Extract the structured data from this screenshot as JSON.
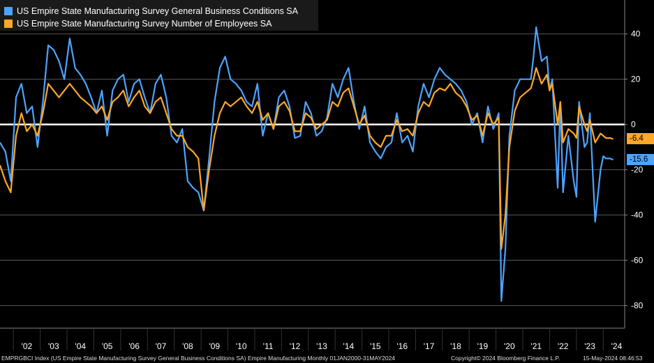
{
  "colors": {
    "background": "#000000",
    "series_blue": "#4da3ff",
    "series_orange": "#ffa726",
    "zero_line": "#ffffff",
    "grid": "#5a5a5a",
    "axis": "#888888"
  },
  "legend": [
    {
      "label": "US Empire State Manufacturing Survey General Business Conditions SA",
      "color": "#4da3ff"
    },
    {
      "label": "US Empire State Manufacturing Survey Number of Employees SA",
      "color": "#ffa726"
    }
  ],
  "last_values": {
    "orange": "-6.4",
    "blue": "-15.6"
  },
  "footer": {
    "left": "EMPRGBCI Index (US Empire State Manufacturing Survey General Business Conditions SA) Empire Manufacturing  Monthly 01JAN2000-31MAY2024",
    "center": "Copyright© 2024 Bloomberg Finance L.P.",
    "right": "15-May-2024 08:46:53"
  },
  "chart_data": {
    "type": "line",
    "xlim": [
      2001.5,
      2024.8
    ],
    "ylim": [
      -90,
      55
    ],
    "y_ticks": [
      40,
      20,
      0,
      -20,
      -40,
      -60,
      -80
    ],
    "y_tick_labels": [
      "40",
      "20",
      "0",
      "-20",
      "-40",
      "-60",
      "-80"
    ],
    "x_tick_labels": [
      "'02",
      "'03",
      "'04",
      "'05",
      "'06",
      "'07",
      "'08",
      "'09",
      "'10",
      "'11",
      "'12",
      "'13",
      "'14",
      "'15",
      "'16",
      "'17",
      "'18",
      "'19",
      "'20",
      "'21",
      "'22",
      "'23",
      "'24"
    ],
    "grid": true,
    "legend_position": "top-left",
    "series": [
      {
        "name": "US Empire State Manufacturing Survey General Business Conditions SA",
        "color": "#4da3ff",
        "x": [
          2001.5,
          2001.7,
          2001.9,
          2002.1,
          2002.3,
          2002.5,
          2002.7,
          2002.9,
          2003.1,
          2003.3,
          2003.5,
          2003.7,
          2003.9,
          2004.1,
          2004.3,
          2004.5,
          2004.7,
          2004.9,
          2005.1,
          2005.3,
          2005.5,
          2005.7,
          2005.9,
          2006.1,
          2006.3,
          2006.5,
          2006.7,
          2006.9,
          2007.1,
          2007.3,
          2007.5,
          2007.7,
          2007.9,
          2008.1,
          2008.3,
          2008.5,
          2008.7,
          2008.9,
          2009.1,
          2009.3,
          2009.5,
          2009.7,
          2009.9,
          2010.1,
          2010.3,
          2010.5,
          2010.7,
          2010.9,
          2011.1,
          2011.3,
          2011.5,
          2011.7,
          2011.9,
          2012.1,
          2012.3,
          2012.5,
          2012.7,
          2012.9,
          2013.1,
          2013.3,
          2013.5,
          2013.7,
          2013.9,
          2014.1,
          2014.3,
          2014.5,
          2014.7,
          2014.9,
          2015.1,
          2015.3,
          2015.5,
          2015.7,
          2015.9,
          2016.1,
          2016.3,
          2016.5,
          2016.7,
          2016.9,
          2017.1,
          2017.3,
          2017.5,
          2017.7,
          2017.9,
          2018.1,
          2018.3,
          2018.5,
          2018.7,
          2018.9,
          2019.1,
          2019.3,
          2019.5,
          2019.7,
          2019.9,
          2020.1,
          2020.2,
          2020.35,
          2020.5,
          2020.7,
          2020.9,
          2021.1,
          2021.3,
          2021.4,
          2021.5,
          2021.7,
          2021.9,
          2022.0,
          2022.1,
          2022.3,
          2022.4,
          2022.5,
          2022.7,
          2022.9,
          2023.0,
          2023.1,
          2023.3,
          2023.4,
          2023.5,
          2023.7,
          2023.9,
          2024.0,
          2024.1,
          2024.25,
          2024.37
        ],
        "y": [
          -8,
          -12,
          -25,
          12,
          18,
          5,
          8,
          -10,
          10,
          35,
          33,
          28,
          20,
          38,
          25,
          22,
          18,
          12,
          5,
          15,
          -5,
          15,
          20,
          22,
          10,
          18,
          20,
          12,
          5,
          18,
          22,
          12,
          -5,
          -8,
          -2,
          -25,
          -28,
          -30,
          -38,
          -15,
          10,
          25,
          30,
          20,
          18,
          15,
          10,
          8,
          18,
          -5,
          5,
          -2,
          12,
          15,
          8,
          -6,
          -5,
          10,
          5,
          -5,
          -3,
          3,
          18,
          12,
          20,
          25,
          10,
          -2,
          8,
          -8,
          -12,
          -15,
          -10,
          -8,
          5,
          -8,
          -5,
          -12,
          8,
          18,
          12,
          20,
          25,
          22,
          20,
          18,
          15,
          10,
          0,
          5,
          -8,
          8,
          -2,
          5,
          -78,
          -55,
          -5,
          15,
          20,
          20,
          20,
          30,
          43,
          28,
          30,
          15,
          20,
          -28,
          10,
          -30,
          -5,
          -25,
          -32,
          10,
          -10,
          -8,
          5,
          -43,
          -20,
          -14,
          -15,
          -15,
          -15.6
        ]
      },
      {
        "name": "US Empire State Manufacturing Survey Number of Employees SA",
        "color": "#ffa726",
        "x": [
          2001.5,
          2001.7,
          2001.9,
          2002.1,
          2002.3,
          2002.5,
          2002.7,
          2002.9,
          2003.1,
          2003.3,
          2003.5,
          2003.7,
          2003.9,
          2004.1,
          2004.3,
          2004.5,
          2004.7,
          2004.9,
          2005.1,
          2005.3,
          2005.5,
          2005.7,
          2005.9,
          2006.1,
          2006.3,
          2006.5,
          2006.7,
          2006.9,
          2007.1,
          2007.3,
          2007.5,
          2007.7,
          2007.9,
          2008.1,
          2008.3,
          2008.5,
          2008.7,
          2008.9,
          2009.1,
          2009.3,
          2009.5,
          2009.7,
          2009.9,
          2010.1,
          2010.3,
          2010.5,
          2010.7,
          2010.9,
          2011.1,
          2011.3,
          2011.5,
          2011.7,
          2011.9,
          2012.1,
          2012.3,
          2012.5,
          2012.7,
          2012.9,
          2013.1,
          2013.3,
          2013.5,
          2013.7,
          2013.9,
          2014.1,
          2014.3,
          2014.5,
          2014.7,
          2014.9,
          2015.1,
          2015.3,
          2015.5,
          2015.7,
          2015.9,
          2016.1,
          2016.3,
          2016.5,
          2016.7,
          2016.9,
          2017.1,
          2017.3,
          2017.5,
          2017.7,
          2017.9,
          2018.1,
          2018.3,
          2018.5,
          2018.7,
          2018.9,
          2019.1,
          2019.3,
          2019.5,
          2019.7,
          2019.9,
          2020.1,
          2020.2,
          2020.35,
          2020.5,
          2020.7,
          2020.9,
          2021.1,
          2021.3,
          2021.4,
          2021.5,
          2021.7,
          2021.9,
          2022.0,
          2022.1,
          2022.3,
          2022.4,
          2022.5,
          2022.7,
          2022.9,
          2023.0,
          2023.1,
          2023.3,
          2023.4,
          2023.5,
          2023.7,
          2023.9,
          2024.0,
          2024.1,
          2024.25,
          2024.37
        ],
        "y": [
          -18,
          -25,
          -30,
          -5,
          5,
          -3,
          0,
          -5,
          5,
          18,
          15,
          12,
          15,
          18,
          15,
          12,
          10,
          8,
          5,
          8,
          2,
          10,
          12,
          15,
          8,
          12,
          15,
          8,
          5,
          10,
          12,
          5,
          -2,
          -5,
          -5,
          -10,
          -12,
          -15,
          -38,
          -20,
          -5,
          5,
          10,
          8,
          10,
          12,
          8,
          5,
          10,
          2,
          5,
          -2,
          8,
          10,
          6,
          -3,
          -3,
          5,
          3,
          -2,
          0,
          2,
          10,
          8,
          14,
          16,
          8,
          0,
          4,
          -5,
          -8,
          -10,
          -5,
          -5,
          2,
          -3,
          -2,
          -5,
          5,
          10,
          8,
          14,
          16,
          15,
          18,
          14,
          12,
          8,
          2,
          4,
          -5,
          5,
          0,
          3,
          -55,
          -40,
          -10,
          6,
          12,
          14,
          16,
          20,
          25,
          18,
          22,
          15,
          18,
          0,
          10,
          -8,
          -2,
          -4,
          -6,
          8,
          0,
          -3,
          2,
          -8,
          -4,
          -5,
          -6,
          -6,
          -6.4
        ]
      }
    ]
  }
}
